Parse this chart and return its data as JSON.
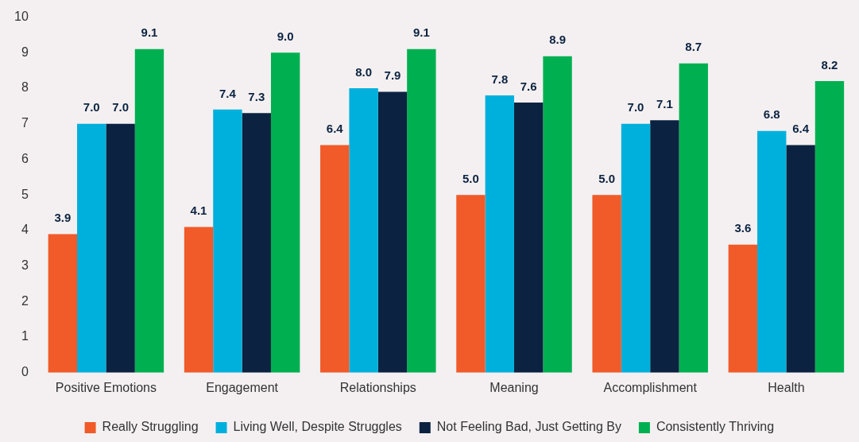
{
  "chart_data": {
    "type": "bar",
    "categories": [
      "Positive Emotions",
      "Engagement",
      "Relationships",
      "Meaning",
      "Accomplishment",
      "Health"
    ],
    "series": [
      {
        "name": "Really Struggling",
        "color": "#f15a29",
        "values": [
          3.9,
          4.1,
          6.4,
          5.0,
          5.0,
          3.6
        ],
        "value_labels": [
          "3.9",
          "4.1",
          "6.4",
          "5.0",
          "5.0",
          "3.6"
        ]
      },
      {
        "name": "Living Well, Despite Struggles",
        "color": "#00b0dc",
        "values": [
          7.0,
          7.4,
          8.0,
          7.8,
          7.0,
          6.8
        ],
        "value_labels": [
          "7.0",
          "7.4",
          "8.0",
          "7.8",
          "7.0",
          "6.8"
        ]
      },
      {
        "name": "Not Feeling Bad, Just Getting By",
        "color": "#0b2341",
        "values": [
          7.0,
          7.3,
          7.9,
          7.6,
          7.1,
          6.4
        ],
        "value_labels": [
          "7.0",
          "7.3",
          "7.9",
          "7.6",
          "7.1",
          "6.4"
        ]
      },
      {
        "name": "Consistently Thriving",
        "color": "#00b050",
        "values": [
          9.1,
          9.0,
          9.1,
          8.9,
          8.7,
          8.2
        ],
        "value_labels": [
          "9.1",
          "9.0",
          "9.1",
          "8.9",
          "8.7",
          "8.2"
        ]
      }
    ],
    "ylim": [
      0,
      10
    ],
    "yticks": [
      0,
      1,
      2,
      3,
      4,
      5,
      6,
      7,
      8,
      9,
      10
    ],
    "grid": false,
    "legend": "bottom"
  }
}
